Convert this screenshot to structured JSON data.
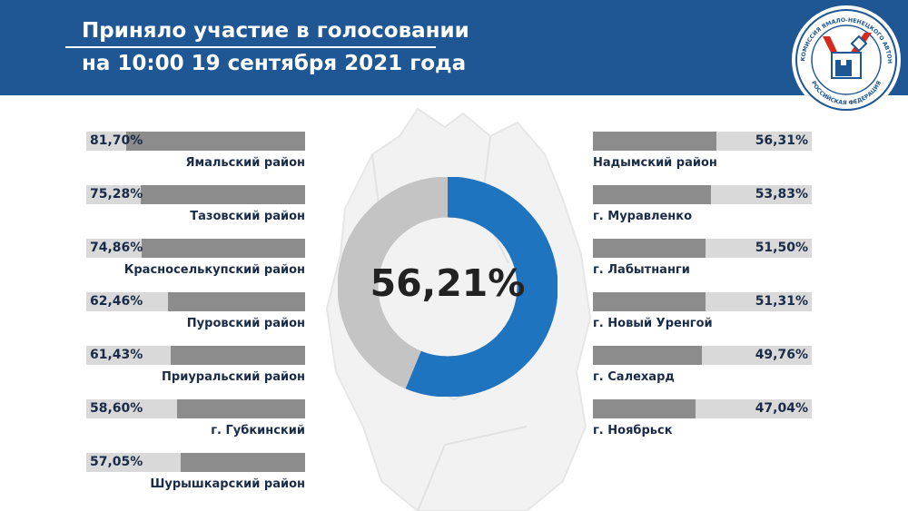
{
  "header": {
    "title_line1": "Приняло участие в голосовании",
    "title_line2": "на 10:00 19 сентября 2021 года"
  },
  "logo": {
    "icon": "election-commission-emblem-icon",
    "ring_text_top": "ИЗБИРАТЕЛЬНАЯ КОМИССИЯ ЯМАЛО-НЕНЕЦКОГО АВТОНОМНОГО ОКРУГА",
    "ring_text_bottom": "РОССИЙСКАЯ ФЕДЕРАЦИЯ"
  },
  "colors": {
    "header_bg": "#1f5694",
    "donut_fill": "#1f74c0",
    "donut_rest": "#c4c4c4",
    "bar_fill": "#8c8c8c",
    "bar_track": "#d9d9d9",
    "label_text": "#1a2b47"
  },
  "chart_data": [
    {
      "type": "pie",
      "subtype": "donut",
      "value": 56.21,
      "label": "56,21%",
      "max": 100
    },
    {
      "type": "bar",
      "orientation": "horizontal",
      "side": "left",
      "xlim": [
        0,
        100
      ],
      "categories": [
        "Ямальский район",
        "Тазовский район",
        "Красноселькупский район",
        "Пуровский район",
        "Приуральский район",
        "г. Губкинский",
        "Шурышкарский район"
      ],
      "values": [
        81.7,
        75.28,
        74.86,
        62.46,
        61.43,
        58.6,
        57.05
      ],
      "value_labels": [
        "81,70%",
        "75,28%",
        "74,86%",
        "62,46%",
        "61,43%",
        "58,60%",
        "57,05%"
      ]
    },
    {
      "type": "bar",
      "orientation": "horizontal",
      "side": "right",
      "xlim": [
        0,
        100
      ],
      "categories": [
        "Надымский район",
        "г. Муравленко",
        "г. Лабытнанги",
        "г. Новый Уренгой",
        "г. Салехард",
        "г. Ноябрьск"
      ],
      "values": [
        56.31,
        53.83,
        51.5,
        51.31,
        49.76,
        47.04
      ],
      "value_labels": [
        "56,31%",
        "53,83%",
        "51,50%",
        "51,31%",
        "49,76%",
        "47,04%"
      ]
    }
  ]
}
